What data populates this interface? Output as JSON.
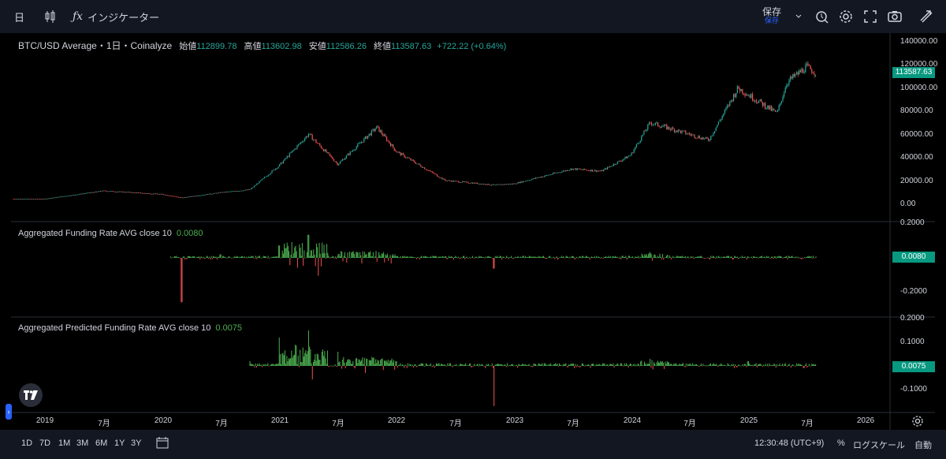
{
  "toolbar": {
    "interval": "日",
    "indicators_label": "インジケーター",
    "save_label": "保存",
    "save_sub": "保存"
  },
  "main_legend": {
    "title": "BTC/USD Average・1日・Coinalyze",
    "open_label": "始値",
    "open": "112899.78",
    "high_label": "高値",
    "high": "113602.98",
    "low_label": "安値",
    "low": "112586.26",
    "close_label": "終値",
    "close": "113587.63",
    "change": "+722.22 (+0.64%)"
  },
  "funding_legend": {
    "title": "Aggregated Funding Rate AVG close 10",
    "value": "0.0080"
  },
  "predicted_legend": {
    "title": "Aggregated Predicted Funding Rate AVG close 10",
    "value": "0.0075"
  },
  "price_axis": [
    "140000.00",
    "120000.00",
    "100000.00",
    "80000.00",
    "60000.00",
    "40000.00",
    "20000.00",
    "0.00"
  ],
  "price_tag": "113587.63",
  "funding_axis": [
    "0.2000",
    "-0.2000"
  ],
  "funding_tag": "0.0080",
  "predicted_axis": [
    "0.2000",
    "0.1000",
    "-0.1000"
  ],
  "predicted_tag": "0.0075",
  "time_axis": [
    "2019",
    "7月",
    "2020",
    "7月",
    "2021",
    "7月",
    "2022",
    "7月",
    "2023",
    "7月",
    "2024",
    "7月",
    "2025",
    "7月",
    "2026"
  ],
  "bottom": {
    "ranges": [
      "1D",
      "7D",
      "1M",
      "3M",
      "6M",
      "1Y",
      "3Y"
    ],
    "time": "12:30:48 (UTC+9)",
    "percent": "%",
    "log": "ログスケール",
    "auto": "自動"
  },
  "colors": {
    "up": "#26a69a",
    "down": "#ef5350",
    "fund_pos": "#4caf50",
    "fund_neg": "#ef5350",
    "tag_green": "#089981",
    "grid": "#2a2e39"
  },
  "chart_data": [
    {
      "type": "line",
      "title": "BTC/USD Average・1日・Coinalyze",
      "x": [
        "2019-01",
        "2019-07",
        "2020-01",
        "2020-03",
        "2020-07",
        "2020-10",
        "2021-01",
        "2021-04",
        "2021-07",
        "2021-11",
        "2022-01",
        "2022-06",
        "2022-11",
        "2023-01",
        "2023-07",
        "2023-10",
        "2024-01",
        "2024-03",
        "2024-07",
        "2024-09",
        "2024-12",
        "2025-04",
        "2025-05",
        "2025-07",
        "2025-08"
      ],
      "series": [
        {
          "values": [
            4000,
            11000,
            8000,
            5000,
            9500,
            12000,
            33000,
            60000,
            34000,
            66000,
            45000,
            20000,
            16000,
            17000,
            30000,
            28000,
            42000,
            70000,
            60000,
            55000,
            100000,
            78000,
            105000,
            118000,
            113587.63
          ]
        }
      ],
      "ylim": [
        0,
        140000
      ]
    },
    {
      "type": "bar",
      "title": "Aggregated Funding Rate AVG close 10",
      "x": [
        "2020-01",
        "2020-03",
        "2020-07",
        "2021-01",
        "2021-04",
        "2021-05",
        "2022-01",
        "2022-11",
        "2023-07",
        "2024-03",
        "2025-01",
        "2025-08"
      ],
      "series": [
        {
          "values": [
            0.03,
            -0.25,
            0.02,
            0.07,
            0.13,
            -0.1,
            0.01,
            -0.06,
            0.01,
            0.03,
            0.01,
            0.008
          ]
        }
      ],
      "ylim": [
        -0.3,
        0.2
      ]
    },
    {
      "type": "bar",
      "title": "Aggregated Predicted Funding Rate AVG close 10",
      "x": [
        "2020-10",
        "2021-01",
        "2021-04",
        "2021-07",
        "2022-01",
        "2022-11",
        "2023-07",
        "2024-03",
        "2025-01",
        "2025-08"
      ],
      "series": [
        {
          "values": [
            0.02,
            0.12,
            0.15,
            0.06,
            0.02,
            -0.17,
            0.01,
            0.03,
            0.02,
            0.0075
          ]
        }
      ],
      "ylim": [
        -0.2,
        0.2
      ]
    }
  ]
}
